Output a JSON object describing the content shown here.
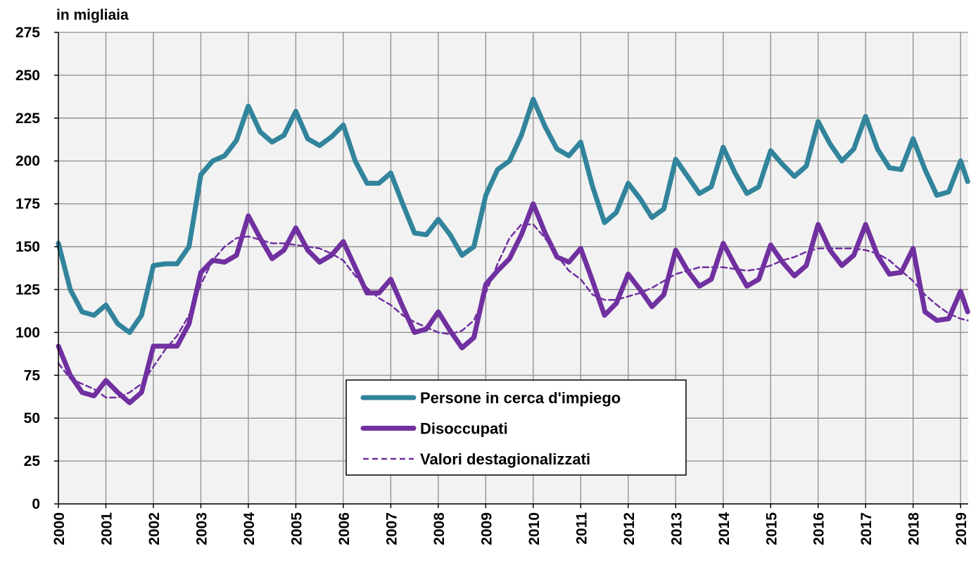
{
  "chart_data": {
    "type": "line",
    "y_label": "in migliaia",
    "x": [
      2000,
      2000.25,
      2000.5,
      2000.75,
      2001,
      2001.25,
      2001.5,
      2001.75,
      2002,
      2002.25,
      2002.5,
      2002.75,
      2003,
      2003.25,
      2003.5,
      2003.75,
      2004,
      2004.25,
      2004.5,
      2004.75,
      2005,
      2005.25,
      2005.5,
      2005.75,
      2006,
      2006.25,
      2006.5,
      2006.75,
      2007,
      2007.25,
      2007.5,
      2007.75,
      2008,
      2008.25,
      2008.5,
      2008.75,
      2009,
      2009.25,
      2009.5,
      2009.75,
      2010,
      2010.25,
      2010.5,
      2010.75,
      2011,
      2011.25,
      2011.5,
      2011.75,
      2012,
      2012.25,
      2012.5,
      2012.75,
      2013,
      2013.25,
      2013.5,
      2013.75,
      2014,
      2014.25,
      2014.5,
      2014.75,
      2015,
      2015.25,
      2015.5,
      2015.75,
      2016,
      2016.25,
      2016.5,
      2016.75,
      2017,
      2017.25,
      2017.5,
      2017.75,
      2018,
      2018.25,
      2018.5,
      2018.75,
      2019,
      2019.15
    ],
    "series": [
      {
        "name": "Persone in cerca d'impiego",
        "color": "#31849b",
        "style": "solid",
        "values": [
          152,
          125,
          112,
          110,
          116,
          105,
          100,
          110,
          139,
          140,
          140,
          150,
          192,
          200,
          203,
          212,
          232,
          217,
          211,
          215,
          229,
          213,
          209,
          214,
          221,
          200,
          187,
          187,
          193,
          175,
          158,
          157,
          166,
          157,
          145,
          150,
          180,
          195,
          200,
          215,
          236,
          220,
          207,
          203,
          211,
          185,
          164,
          170,
          187,
          178,
          167,
          172,
          201,
          191,
          181,
          185,
          208,
          193,
          181,
          185,
          206,
          198,
          191,
          197,
          223,
          210,
          200,
          207,
          226,
          207,
          196,
          195,
          213,
          195,
          180,
          182,
          200,
          188
        ]
      },
      {
        "name": "Disoccupati",
        "color": "#7030a0",
        "style": "solid",
        "values": [
          92,
          75,
          65,
          63,
          72,
          65,
          59,
          65,
          92,
          92,
          92,
          105,
          135,
          142,
          141,
          145,
          168,
          155,
          143,
          148,
          161,
          148,
          141,
          145,
          153,
          138,
          123,
          123,
          131,
          115,
          100,
          102,
          112,
          101,
          91,
          97,
          128,
          136,
          143,
          157,
          175,
          158,
          144,
          141,
          149,
          130,
          110,
          117,
          134,
          125,
          115,
          122,
          148,
          136,
          127,
          131,
          152,
          139,
          127,
          131,
          151,
          141,
          133,
          139,
          163,
          148,
          139,
          145,
          163,
          145,
          134,
          135,
          149,
          112,
          107,
          108,
          124,
          112
        ]
      },
      {
        "name": "Valori destagionalizzati",
        "color": "#7030a0",
        "style": "dashed",
        "values": [
          82,
          73,
          70,
          67,
          62,
          62,
          65,
          70,
          80,
          90,
          98,
          110,
          128,
          142,
          150,
          155,
          156,
          154,
          152,
          152,
          151,
          150,
          149,
          146,
          142,
          133,
          126,
          120,
          116,
          110,
          106,
          103,
          100,
          99,
          101,
          107,
          123,
          140,
          155,
          163,
          163,
          155,
          145,
          136,
          131,
          122,
          119,
          119,
          121,
          123,
          126,
          130,
          134,
          136,
          138,
          138,
          138,
          137,
          136,
          137,
          139,
          142,
          144,
          147,
          149,
          149,
          149,
          149,
          148,
          146,
          142,
          136,
          130,
          122,
          116,
          111,
          108,
          107
        ]
      }
    ],
    "xlim": [
      2000,
      2019.16
    ],
    "xticks": [
      2000,
      2001,
      2002,
      2003,
      2004,
      2005,
      2006,
      2007,
      2008,
      2009,
      2010,
      2011,
      2012,
      2013,
      2014,
      2015,
      2016,
      2017,
      2018,
      2019
    ],
    "ylim": [
      0,
      275
    ],
    "yticks": [
      0,
      25,
      50,
      75,
      100,
      125,
      150,
      175,
      200,
      225,
      250,
      275
    ],
    "grid": true,
    "legend": "bottom-center"
  }
}
